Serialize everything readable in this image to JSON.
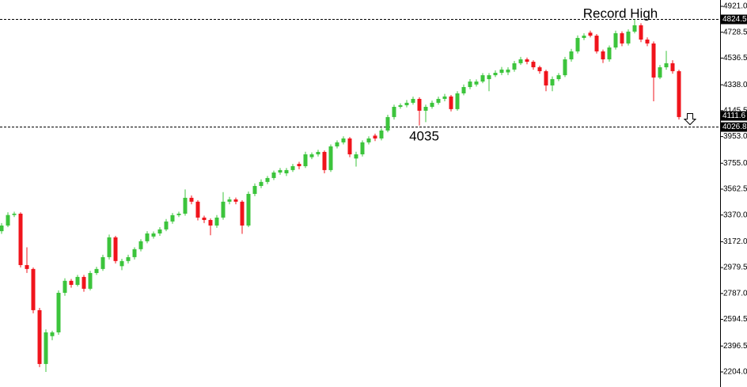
{
  "chart_data": {
    "type": "candlestick",
    "up_color": "#3cc43c",
    "down_color": "#f0141c",
    "ylim": [
      2092,
      4968
    ],
    "yticks": [
      {
        "value": 4921.0,
        "label": "4921.0"
      },
      {
        "value": 4728.5,
        "label": "4728.5"
      },
      {
        "value": 4536.5,
        "label": "4536.5"
      },
      {
        "value": 4338.0,
        "label": "4338.0"
      },
      {
        "value": 4145.5,
        "label": "4145.5"
      },
      {
        "value": 3953.0,
        "label": "3953.0"
      },
      {
        "value": 3755.0,
        "label": "3755.0"
      },
      {
        "value": 3562.5,
        "label": "3562.5"
      },
      {
        "value": 3370.0,
        "label": "3370.0"
      },
      {
        "value": 3172.0,
        "label": "3172.0"
      },
      {
        "value": 2979.5,
        "label": "2979.5"
      },
      {
        "value": 2787.0,
        "label": "2787.0"
      },
      {
        "value": 2594.5,
        "label": "2594.5"
      },
      {
        "value": 2396.5,
        "label": "2396.5"
      },
      {
        "value": 2204.0,
        "label": "2204.0"
      }
    ],
    "levels": [
      {
        "value": 4824.5,
        "label": "4824.5",
        "dashed": true
      },
      {
        "value": 4111.6,
        "label": "4111.6",
        "dashed": false
      },
      {
        "value": 4026.8,
        "label": "4026.8",
        "dashed": true
      }
    ],
    "annotations": [
      {
        "text": "Record High"
      },
      {
        "text": "4035"
      }
    ],
    "open": [
      3250,
      3292,
      3370,
      3380,
      2998,
      2969,
      2663,
      2263,
      2470,
      2498,
      2792,
      2881,
      2851,
      2910,
      2822,
      2939,
      2969,
      3057,
      3204,
      2990,
      3028,
      3057,
      3116,
      3175,
      3210,
      3233,
      3263,
      3322,
      3369,
      3380,
      3498,
      3469,
      3351,
      3333,
      3292,
      3351,
      3469,
      3486,
      3469,
      3292,
      3527,
      3586,
      3616,
      3645,
      3686,
      3680,
      3704,
      3750,
      3733,
      3800,
      3821,
      3839,
      3704,
      3880,
      3910,
      3939,
      3790,
      3821,
      3910,
      3960,
      3939,
      3998,
      4098,
      4174,
      4186,
      4204,
      4233,
      4145,
      4174,
      4204,
      4233,
      4251,
      4157,
      4274,
      4321,
      4340,
      4362,
      4380,
      4409,
      4427,
      4430,
      4451,
      4498,
      4527,
      4509,
      4468,
      4439,
      4333,
      4380,
      4409,
      4527,
      4586,
      4686,
      4725,
      4703,
      4586,
      4527,
      4615,
      4721,
      4645,
      4733,
      4780,
      4674,
      4645,
      4392,
      4468,
      4498,
      4439
    ],
    "high": [
      3310,
      3390,
      3395,
      3390,
      3130,
      2980,
      2680,
      2520,
      2510,
      2810,
      2900,
      2895,
      2925,
      2925,
      2955,
      2985,
      3075,
      3225,
      3215,
      3045,
      3075,
      3130,
      3190,
      3250,
      3248,
      3280,
      3340,
      3385,
      3395,
      3560,
      3515,
      3480,
      3365,
      3345,
      3370,
      3540,
      3505,
      3500,
      3480,
      3545,
      3605,
      3635,
      3660,
      3700,
      3720,
      3720,
      3750,
      3765,
      3840,
      3835,
      3855,
      3850,
      3895,
      3925,
      3955,
      3950,
      3840,
      3925,
      3955,
      3975,
      4015,
      4115,
      4190,
      4200,
      4225,
      4250,
      4245,
      4190,
      4220,
      4250,
      4270,
      4262,
      4290,
      4340,
      4380,
      4378,
      4425,
      4425,
      4445,
      4470,
      4468,
      4515,
      4545,
      4540,
      4520,
      4480,
      4450,
      4400,
      4425,
      4545,
      4605,
      4705,
      4720,
      4740,
      4715,
      4600,
      4630,
      4740,
      4735,
      4750,
      4824,
      4795,
      4690,
      4660,
      4485,
      4590,
      4520,
      4450
    ],
    "low": [
      3230,
      3280,
      3355,
      2980,
      2940,
      2640,
      2240,
      2204,
      2440,
      2480,
      2770,
      2830,
      2840,
      2800,
      2810,
      2925,
      2955,
      3040,
      3010,
      2960,
      3010,
      3040,
      3100,
      3160,
      3195,
      3215,
      3250,
      3305,
      3355,
      3365,
      3450,
      3330,
      3310,
      3220,
      3275,
      3335,
      3450,
      3450,
      3230,
      3280,
      3510,
      3570,
      3600,
      3630,
      3670,
      3660,
      3690,
      3710,
      3720,
      3785,
      3805,
      3680,
      3690,
      3865,
      3895,
      3800,
      3730,
      3805,
      3895,
      3920,
      3925,
      3985,
      4080,
      4160,
      4170,
      4190,
      4035,
      4060,
      4160,
      4190,
      4215,
      4140,
      4145,
      4260,
      4305,
      4325,
      4350,
      4290,
      4395,
      4410,
      4410,
      4435,
      4485,
      4490,
      4450,
      4420,
      4290,
      4290,
      4365,
      4395,
      4510,
      4570,
      4670,
      4690,
      4570,
      4500,
      4510,
      4600,
      4625,
      4630,
      4720,
      4655,
      4625,
      4215,
      4380,
      4450,
      4420,
      4080
    ],
    "close": [
      3292,
      3370,
      3380,
      2998,
      2969,
      2663,
      2263,
      2498,
      2498,
      2792,
      2881,
      2851,
      2910,
      2822,
      2939,
      2969,
      3057,
      3204,
      3028,
      3028,
      3057,
      3116,
      3175,
      3233,
      3233,
      3263,
      3322,
      3369,
      3380,
      3498,
      3469,
      3351,
      3333,
      3292,
      3351,
      3469,
      3486,
      3469,
      3292,
      3527,
      3586,
      3616,
      3645,
      3686,
      3704,
      3704,
      3733,
      3733,
      3821,
      3821,
      3839,
      3704,
      3880,
      3910,
      3939,
      3821,
      3821,
      3910,
      3939,
      3939,
      3998,
      4098,
      4174,
      4186,
      4204,
      4233,
      4145,
      4174,
      4204,
      4233,
      4251,
      4157,
      4274,
      4321,
      4362,
      4362,
      4409,
      4409,
      4427,
      4451,
      4451,
      4498,
      4527,
      4509,
      4468,
      4439,
      4333,
      4380,
      4409,
      4527,
      4586,
      4686,
      4703,
      4703,
      4586,
      4527,
      4615,
      4721,
      4645,
      4733,
      4780,
      4674,
      4645,
      4392,
      4468,
      4498,
      4439,
      4098
    ]
  }
}
